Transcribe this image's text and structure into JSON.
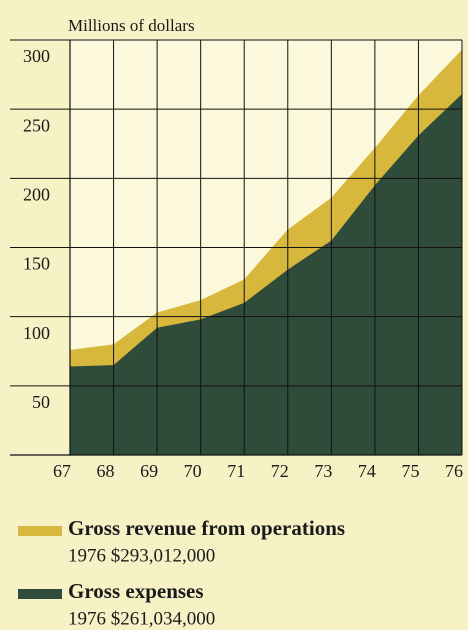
{
  "chart_data": {
    "type": "area",
    "y_axis_label": "Millions of dollars",
    "categories": [
      "67",
      "68",
      "69",
      "70",
      "71",
      "72",
      "73",
      "74",
      "75",
      "76"
    ],
    "series": [
      {
        "name": "Gross revenue from operations",
        "color": "#d8b83c",
        "note": "1976 $293,012,000",
        "values": [
          76,
          80,
          103,
          112,
          127,
          163,
          186,
          222,
          260,
          293
        ]
      },
      {
        "name": "Gross expenses",
        "color": "#2f4b3a",
        "note": "1976 $261,034,000",
        "values": [
          64,
          65,
          92,
          98,
          110,
          134,
          155,
          195,
          231,
          261
        ]
      }
    ],
    "ylim": [
      0,
      300
    ],
    "yticks": [
      50,
      100,
      150,
      200,
      250,
      300
    ],
    "grid": true
  }
}
